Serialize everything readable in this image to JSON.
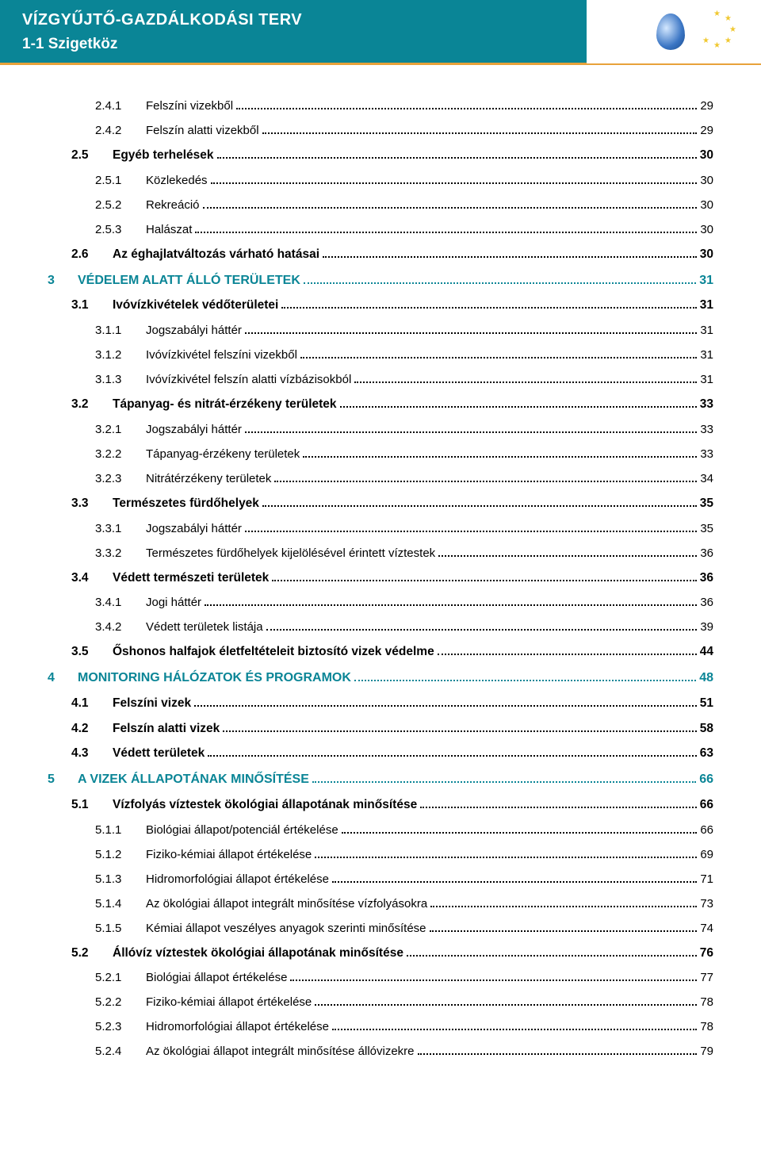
{
  "header": {
    "title": "VÍZGYŰJTŐ-GAZDÁLKODÁSI TERV",
    "subtitle": "1-1 Szigetköz"
  },
  "colors": {
    "header_bg": "#0a8596",
    "header_text": "#ffffff",
    "accent_orange": "#e8a23a",
    "lvl0_text": "#0a8596",
    "body_text": "#000000",
    "star": "#f0c830"
  },
  "typography": {
    "header_title_size": 20,
    "header_subtitle_size": 19,
    "lvl0_size": 16,
    "lvl1_size": 15.5,
    "lvl2_size": 15
  },
  "toc": [
    {
      "level": 2,
      "num": "2.4.1",
      "label": "Felszíni vizekből",
      "page": "29"
    },
    {
      "level": 2,
      "num": "2.4.2",
      "label": "Felszín alatti vizekből",
      "page": "29"
    },
    {
      "level": 1,
      "num": "2.5",
      "label": "Egyéb terhelések",
      "page": "30"
    },
    {
      "level": 2,
      "num": "2.5.1",
      "label": "Közlekedés",
      "page": "30"
    },
    {
      "level": 2,
      "num": "2.5.2",
      "label": "Rekreáció",
      "page": "30"
    },
    {
      "level": 2,
      "num": "2.5.3",
      "label": "Halászat",
      "page": "30"
    },
    {
      "level": 1,
      "num": "2.6",
      "label": "Az éghajlatváltozás várható hatásai",
      "page": "30"
    },
    {
      "level": 0,
      "num": "3",
      "label": "VÉDELEM ALATT ÁLLÓ TERÜLETEK",
      "page": "31"
    },
    {
      "level": 1,
      "num": "3.1",
      "label": "Ivóvízkivételek védőterületei",
      "page": "31"
    },
    {
      "level": 2,
      "num": "3.1.1",
      "label": "Jogszabályi háttér",
      "page": "31"
    },
    {
      "level": 2,
      "num": "3.1.2",
      "label": "Ivóvízkivétel felszíni vizekből",
      "page": "31"
    },
    {
      "level": 2,
      "num": "3.1.3",
      "label": "Ivóvízkivétel felszín alatti vízbázisokból",
      "page": "31"
    },
    {
      "level": 1,
      "num": "3.2",
      "label": "Tápanyag- és nitrát-érzékeny területek",
      "page": "33"
    },
    {
      "level": 2,
      "num": "3.2.1",
      "label": "Jogszabályi háttér",
      "page": "33"
    },
    {
      "level": 2,
      "num": "3.2.2",
      "label": "Tápanyag-érzékeny területek",
      "page": "33"
    },
    {
      "level": 2,
      "num": "3.2.3",
      "label": "Nitrátérzékeny területek",
      "page": "34"
    },
    {
      "level": 1,
      "num": "3.3",
      "label": "Természetes fürdőhelyek",
      "page": "35"
    },
    {
      "level": 2,
      "num": "3.3.1",
      "label": "Jogszabályi háttér",
      "page": "35"
    },
    {
      "level": 2,
      "num": "3.3.2",
      "label": "Természetes fürdőhelyek kijelölésével érintett víztestek",
      "page": "36"
    },
    {
      "level": 1,
      "num": "3.4",
      "label": "Védett természeti területek",
      "page": "36"
    },
    {
      "level": 2,
      "num": "3.4.1",
      "label": "Jogi háttér",
      "page": "36"
    },
    {
      "level": 2,
      "num": "3.4.2",
      "label": "Védett területek listája",
      "page": "39"
    },
    {
      "level": 1,
      "num": "3.5",
      "label": "Őshonos halfajok életfeltételeit biztosító vizek védelme",
      "page": "44"
    },
    {
      "level": 0,
      "num": "4",
      "label": "MONITORING HÁLÓZATOK ÉS PROGRAMOK",
      "page": "48"
    },
    {
      "level": 1,
      "num": "4.1",
      "label": "Felszíni vizek",
      "page": "51"
    },
    {
      "level": 1,
      "num": "4.2",
      "label": "Felszín alatti vizek",
      "page": "58"
    },
    {
      "level": 1,
      "num": "4.3",
      "label": "Védett területek",
      "page": "63"
    },
    {
      "level": 0,
      "num": "5",
      "label": "A VIZEK ÁLLAPOTÁNAK MINŐSÍTÉSE",
      "page": "66"
    },
    {
      "level": 1,
      "num": "5.1",
      "label": "Vízfolyás víztestek ökológiai állapotának minősítése",
      "page": "66"
    },
    {
      "level": 2,
      "num": "5.1.1",
      "label": "Biológiai állapot/potenciál értékelése",
      "page": "66"
    },
    {
      "level": 2,
      "num": "5.1.2",
      "label": "Fiziko-kémiai állapot értékelése",
      "page": "69"
    },
    {
      "level": 2,
      "num": "5.1.3",
      "label": "Hidromorfológiai állapot értékelése",
      "page": "71"
    },
    {
      "level": 2,
      "num": "5.1.4",
      "label": "Az ökológiai állapot integrált minősítése vízfolyásokra",
      "page": "73"
    },
    {
      "level": 2,
      "num": "5.1.5",
      "label": "Kémiai állapot veszélyes anyagok szerinti minősítése",
      "page": "74"
    },
    {
      "level": 1,
      "num": "5.2",
      "label": "Állóvíz víztestek ökológiai állapotának minősítése",
      "page": "76"
    },
    {
      "level": 2,
      "num": "5.2.1",
      "label": "Biológiai állapot értékelése",
      "page": "77"
    },
    {
      "level": 2,
      "num": "5.2.2",
      "label": "Fiziko-kémiai állapot értékelése",
      "page": "78"
    },
    {
      "level": 2,
      "num": "5.2.3",
      "label": "Hidromorfológiai állapot értékelése",
      "page": "78"
    },
    {
      "level": 2,
      "num": "5.2.4",
      "label": "Az ökológiai állapot integrált minősítése állóvizekre",
      "page": "79"
    }
  ]
}
